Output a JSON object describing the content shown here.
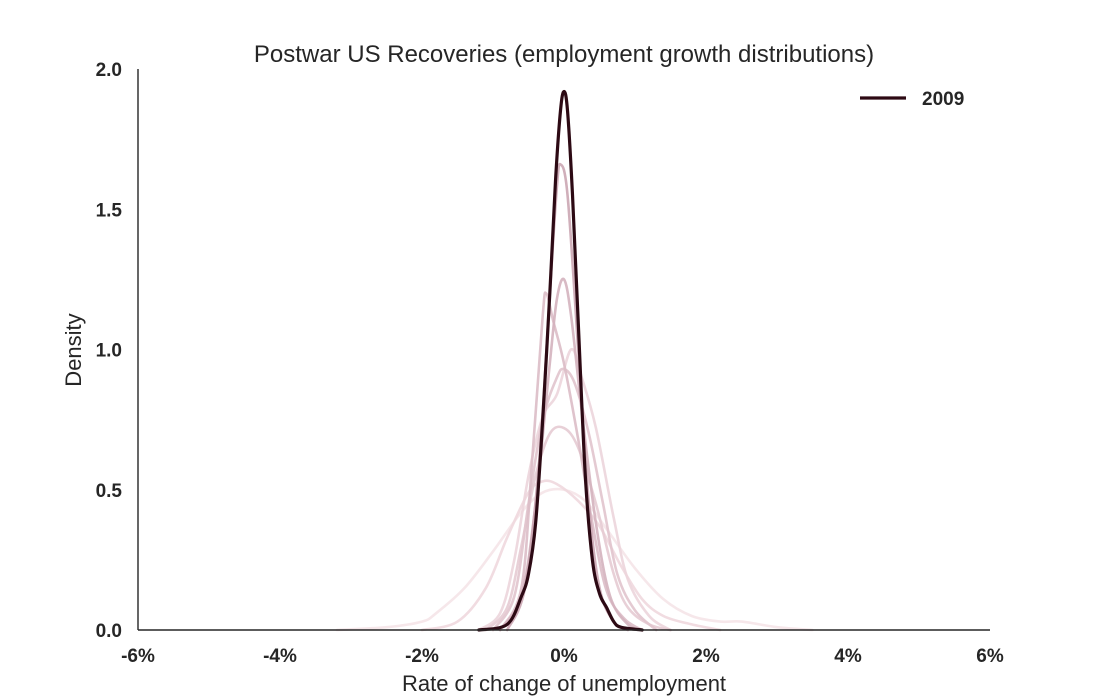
{
  "chart_data": {
    "type": "line",
    "title": "Postwar US Recoveries (employment growth distributions)",
    "xlabel": "Rate of change of unemployment",
    "ylabel": "Density",
    "xlim": [
      -6,
      6
    ],
    "ylim": [
      0,
      2.0
    ],
    "x_ticks": [
      "-6%",
      "-4%",
      "-2%",
      "0%",
      "2%",
      "4%",
      "6%"
    ],
    "y_ticks": [
      "0.0",
      "0.5",
      "1.0",
      "1.5",
      "2.0"
    ],
    "grid": false,
    "legend": {
      "position": "top-right",
      "entries": [
        "2009"
      ]
    },
    "series": [
      {
        "color": "#f5e4e8",
        "opacity": 0.9,
        "points": [
          [
            -3.2,
            0.0
          ],
          [
            -2.5,
            0.01
          ],
          [
            -2.0,
            0.03
          ],
          [
            -1.8,
            0.06
          ],
          [
            -1.4,
            0.15
          ],
          [
            -1.0,
            0.28
          ],
          [
            -0.6,
            0.42
          ],
          [
            -0.3,
            0.49
          ],
          [
            0.0,
            0.5
          ],
          [
            0.3,
            0.46
          ],
          [
            0.6,
            0.36
          ],
          [
            1.0,
            0.22
          ],
          [
            1.4,
            0.11
          ],
          [
            1.8,
            0.05
          ],
          [
            2.2,
            0.03
          ],
          [
            2.5,
            0.03
          ],
          [
            3.0,
            0.01
          ],
          [
            3.5,
            0.0
          ]
        ]
      },
      {
        "color": "#f0d8de",
        "opacity": 0.9,
        "points": [
          [
            -2.0,
            0.0
          ],
          [
            -1.5,
            0.03
          ],
          [
            -1.1,
            0.15
          ],
          [
            -0.8,
            0.33
          ],
          [
            -0.5,
            0.49
          ],
          [
            -0.3,
            0.53
          ],
          [
            -0.1,
            0.52
          ],
          [
            0.2,
            0.46
          ],
          [
            0.5,
            0.37
          ],
          [
            0.8,
            0.23
          ],
          [
            1.1,
            0.11
          ],
          [
            1.4,
            0.05
          ],
          [
            1.8,
            0.02
          ],
          [
            2.2,
            0.0
          ]
        ]
      },
      {
        "color": "#ecd5db",
        "opacity": 0.9,
        "points": [
          [
            -1.2,
            0.0
          ],
          [
            -0.9,
            0.06
          ],
          [
            -0.7,
            0.25
          ],
          [
            -0.5,
            0.55
          ],
          [
            -0.3,
            0.76
          ],
          [
            -0.1,
            0.84
          ],
          [
            0.1,
            1.0
          ],
          [
            0.25,
            0.9
          ],
          [
            0.45,
            0.72
          ],
          [
            0.7,
            0.4
          ],
          [
            0.9,
            0.18
          ],
          [
            1.2,
            0.05
          ],
          [
            1.5,
            0.0
          ]
        ]
      },
      {
        "color": "#e6cbd3",
        "opacity": 0.9,
        "points": [
          [
            -1.1,
            0.0
          ],
          [
            -0.8,
            0.08
          ],
          [
            -0.6,
            0.3
          ],
          [
            -0.4,
            0.55
          ],
          [
            -0.2,
            0.7
          ],
          [
            0.0,
            0.72
          ],
          [
            0.2,
            0.65
          ],
          [
            0.45,
            0.45
          ],
          [
            0.7,
            0.2
          ],
          [
            0.9,
            0.08
          ],
          [
            1.2,
            0.02
          ],
          [
            1.5,
            0.0
          ]
        ]
      },
      {
        "color": "#e1c4cd",
        "opacity": 0.9,
        "points": [
          [
            -1.0,
            0.0
          ],
          [
            -0.7,
            0.12
          ],
          [
            -0.5,
            0.45
          ],
          [
            -0.3,
            0.75
          ],
          [
            -0.1,
            0.9
          ],
          [
            0.0,
            0.93
          ],
          [
            0.15,
            0.88
          ],
          [
            0.35,
            0.7
          ],
          [
            0.55,
            0.45
          ],
          [
            0.75,
            0.2
          ],
          [
            1.0,
            0.07
          ],
          [
            1.3,
            0.0
          ]
        ]
      },
      {
        "color": "#dcbdc7",
        "opacity": 0.9,
        "points": [
          [
            -0.9,
            0.0
          ],
          [
            -0.6,
            0.15
          ],
          [
            -0.45,
            0.6
          ],
          [
            -0.3,
            1.12
          ],
          [
            -0.25,
            1.2
          ],
          [
            -0.15,
            1.1
          ],
          [
            0.0,
            0.95
          ],
          [
            0.2,
            0.68
          ],
          [
            0.4,
            0.38
          ],
          [
            0.6,
            0.14
          ],
          [
            0.85,
            0.04
          ],
          [
            1.1,
            0.0
          ]
        ]
      },
      {
        "color": "#d4b3be",
        "opacity": 0.9,
        "points": [
          [
            -0.9,
            0.0
          ],
          [
            -0.6,
            0.12
          ],
          [
            -0.4,
            0.45
          ],
          [
            -0.2,
            0.95
          ],
          [
            -0.1,
            1.18
          ],
          [
            0.0,
            1.25
          ],
          [
            0.1,
            1.12
          ],
          [
            0.25,
            0.78
          ],
          [
            0.45,
            0.38
          ],
          [
            0.65,
            0.12
          ],
          [
            0.9,
            0.02
          ],
          [
            1.1,
            0.0
          ]
        ]
      },
      {
        "color": "#cba6b3",
        "opacity": 0.9,
        "points": [
          [
            -0.8,
            0.0
          ],
          [
            -0.55,
            0.15
          ],
          [
            -0.35,
            0.6
          ],
          [
            -0.2,
            1.2
          ],
          [
            -0.1,
            1.58
          ],
          [
            -0.05,
            1.66
          ],
          [
            0.05,
            1.55
          ],
          [
            0.2,
            1.0
          ],
          [
            0.35,
            0.45
          ],
          [
            0.5,
            0.15
          ],
          [
            0.7,
            0.03
          ],
          [
            0.9,
            0.0
          ]
        ]
      },
      {
        "name": "2009",
        "color": "#2d0a14",
        "opacity": 1.0,
        "width": 3.2,
        "points": [
          [
            -1.2,
            0.0
          ],
          [
            -0.8,
            0.02
          ],
          [
            -0.6,
            0.12
          ],
          [
            -0.5,
            0.2
          ],
          [
            -0.4,
            0.38
          ],
          [
            -0.3,
            0.75
          ],
          [
            -0.2,
            1.2
          ],
          [
            -0.12,
            1.6
          ],
          [
            -0.05,
            1.85
          ],
          [
            0.0,
            1.92
          ],
          [
            0.05,
            1.85
          ],
          [
            0.12,
            1.55
          ],
          [
            0.2,
            1.1
          ],
          [
            0.3,
            0.55
          ],
          [
            0.4,
            0.25
          ],
          [
            0.5,
            0.13
          ],
          [
            0.6,
            0.08
          ],
          [
            0.7,
            0.03
          ],
          [
            0.8,
            0.01
          ],
          [
            1.1,
            0.0
          ]
        ]
      }
    ]
  }
}
